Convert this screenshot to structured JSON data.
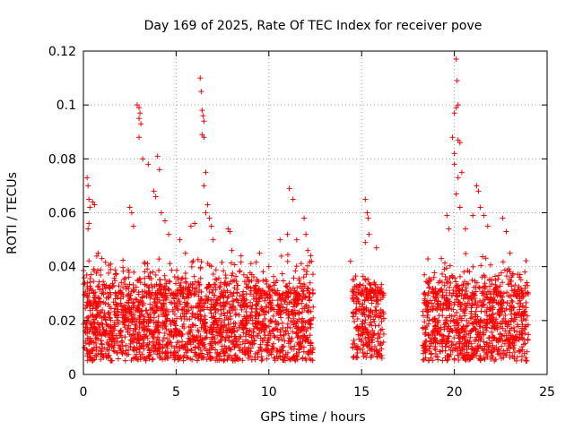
{
  "chart_data": {
    "type": "scatter",
    "title": "Day 169 of 2025, Rate Of TEC Index for receiver pove",
    "xlabel": "GPS time / hours",
    "ylabel": "ROTI / TECUs",
    "xlim": [
      0,
      25
    ],
    "ylim": [
      0,
      0.12
    ],
    "xticks": [
      "0",
      "5",
      "10",
      "15",
      "20",
      "25"
    ],
    "yticks": [
      "0",
      "0.02",
      "0.04",
      "0.06",
      "0.08",
      "0.1",
      "0.12"
    ],
    "grid": true,
    "marker": "+",
    "series_color": "#ff0000",
    "series": [
      {
        "segments": [
          {
            "x_range": [
              0.0,
              12.4
            ],
            "base_range": [
              0.005,
              0.03
            ],
            "envelope": [
              0.03,
              0.045
            ]
          },
          {
            "x_range": [
              14.5,
              16.2
            ],
            "base_range": [
              0.006,
              0.03
            ],
            "envelope": [
              0.03,
              0.04
            ]
          },
          {
            "x_range": [
              18.3,
              24.0
            ],
            "base_range": [
              0.005,
              0.03
            ],
            "envelope": [
              0.03,
              0.045
            ]
          }
        ],
        "points": [
          [
            0.2,
            0.073
          ],
          [
            0.25,
            0.07
          ],
          [
            0.3,
            0.065
          ],
          [
            0.35,
            0.062
          ],
          [
            0.3,
            0.056
          ],
          [
            0.25,
            0.054
          ],
          [
            0.5,
            0.064
          ],
          [
            0.6,
            0.063
          ],
          [
            0.8,
            0.045
          ],
          [
            1.0,
            0.043
          ],
          [
            2.5,
            0.062
          ],
          [
            2.6,
            0.06
          ],
          [
            2.7,
            0.055
          ],
          [
            2.9,
            0.1
          ],
          [
            3.0,
            0.099
          ],
          [
            3.05,
            0.097
          ],
          [
            3.0,
            0.095
          ],
          [
            3.1,
            0.093
          ],
          [
            3.0,
            0.088
          ],
          [
            3.2,
            0.08
          ],
          [
            3.5,
            0.078
          ],
          [
            3.8,
            0.068
          ],
          [
            3.9,
            0.066
          ],
          [
            4.0,
            0.081
          ],
          [
            4.1,
            0.076
          ],
          [
            4.2,
            0.06
          ],
          [
            4.4,
            0.057
          ],
          [
            4.6,
            0.052
          ],
          [
            5.2,
            0.05
          ],
          [
            5.5,
            0.045
          ],
          [
            5.8,
            0.055
          ],
          [
            6.0,
            0.056
          ],
          [
            6.3,
            0.11
          ],
          [
            6.35,
            0.105
          ],
          [
            6.4,
            0.098
          ],
          [
            6.45,
            0.096
          ],
          [
            6.5,
            0.094
          ],
          [
            6.4,
            0.089
          ],
          [
            6.5,
            0.088
          ],
          [
            6.6,
            0.075
          ],
          [
            6.5,
            0.07
          ],
          [
            6.7,
            0.063
          ],
          [
            6.6,
            0.06
          ],
          [
            6.8,
            0.058
          ],
          [
            6.9,
            0.055
          ],
          [
            7.0,
            0.05
          ],
          [
            7.8,
            0.054
          ],
          [
            7.9,
            0.053
          ],
          [
            8.0,
            0.046
          ],
          [
            8.5,
            0.044
          ],
          [
            9.5,
            0.045
          ],
          [
            10.0,
            0.04
          ],
          [
            10.6,
            0.05
          ],
          [
            11.0,
            0.052
          ],
          [
            11.1,
            0.069
          ],
          [
            11.3,
            0.065
          ],
          [
            11.5,
            0.05
          ],
          [
            11.9,
            0.058
          ],
          [
            12.0,
            0.052
          ],
          [
            12.1,
            0.046
          ],
          [
            12.3,
            0.042
          ],
          [
            14.4,
            0.042
          ],
          [
            15.2,
            0.065
          ],
          [
            15.3,
            0.06
          ],
          [
            15.35,
            0.058
          ],
          [
            15.4,
            0.052
          ],
          [
            15.2,
            0.049
          ],
          [
            15.8,
            0.047
          ],
          [
            19.3,
            0.043
          ],
          [
            19.6,
            0.059
          ],
          [
            19.7,
            0.054
          ],
          [
            19.9,
            0.088
          ],
          [
            20.0,
            0.078
          ],
          [
            20.0,
            0.082
          ],
          [
            20.1,
            0.067
          ],
          [
            20.1,
            0.117
          ],
          [
            20.15,
            0.109
          ],
          [
            20.2,
            0.1
          ],
          [
            20.1,
            0.099
          ],
          [
            20.0,
            0.097
          ],
          [
            20.2,
            0.087
          ],
          [
            20.3,
            0.086
          ],
          [
            20.4,
            0.075
          ],
          [
            20.2,
            0.073
          ],
          [
            20.3,
            0.062
          ],
          [
            20.6,
            0.054
          ],
          [
            21.0,
            0.059
          ],
          [
            21.2,
            0.07
          ],
          [
            21.3,
            0.068
          ],
          [
            21.4,
            0.062
          ],
          [
            21.6,
            0.059
          ],
          [
            21.8,
            0.055
          ],
          [
            22.6,
            0.058
          ],
          [
            22.8,
            0.053
          ],
          [
            23.0,
            0.045
          ],
          [
            23.8,
            0.038
          ],
          [
            23.6,
            0.032
          ],
          [
            23.9,
            0.03
          ]
        ]
      }
    ]
  }
}
